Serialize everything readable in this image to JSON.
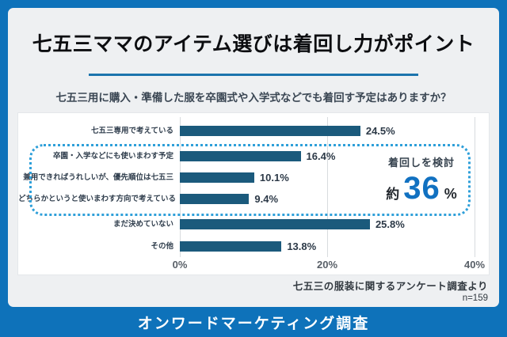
{
  "page": {
    "title": "七五三ママのアイテム選びは着回し力がポイント",
    "subtitle": "七五三用に購入・準備した服を卒園式や入学式などでも着回す予定はありますか？",
    "source_line1": "七五三の服装に関するアンケート調査より",
    "source_line2": "n=159",
    "footer": "オンワードマーケティング調査"
  },
  "colors": {
    "frame_blue": "#0e72ba",
    "page_bg": "#eef0f2",
    "bar_teal": "#1b5a7c",
    "dotted_blue": "#2e9fd9",
    "accent_blue": "#1171c1",
    "title_underline": "#1b74ad"
  },
  "chart_data": {
    "type": "bar",
    "orientation": "horizontal",
    "title": "七五三用に購入・準備した服を卒園式や入学式などでも着回す予定はありますか？",
    "categories": [
      "七五三専用で考えている",
      "卒園・入学などにも使いまわす予定",
      "兼用できればうれしいが、優先順位は七五三",
      "どちらかというと使いまわす方向で考えている",
      "まだ決めていない",
      "その他"
    ],
    "values": [
      24.5,
      16.4,
      10.1,
      9.4,
      25.8,
      13.8
    ],
    "value_labels": [
      "24.5%",
      "16.4%",
      "10.1%",
      "9.4%",
      "25.8%",
      "13.8%"
    ],
    "x_tick_labels": [
      "0%",
      "20%",
      "40%"
    ],
    "x_tick_values": [
      0,
      20,
      40
    ],
    "xlim": [
      0,
      40
    ],
    "grid": true,
    "legend": false,
    "highlight": {
      "rows": [
        1,
        2,
        3
      ],
      "label": "着回しを検討",
      "approx_prefix": "約",
      "approx_value": "36",
      "approx_suffix": "%"
    }
  }
}
